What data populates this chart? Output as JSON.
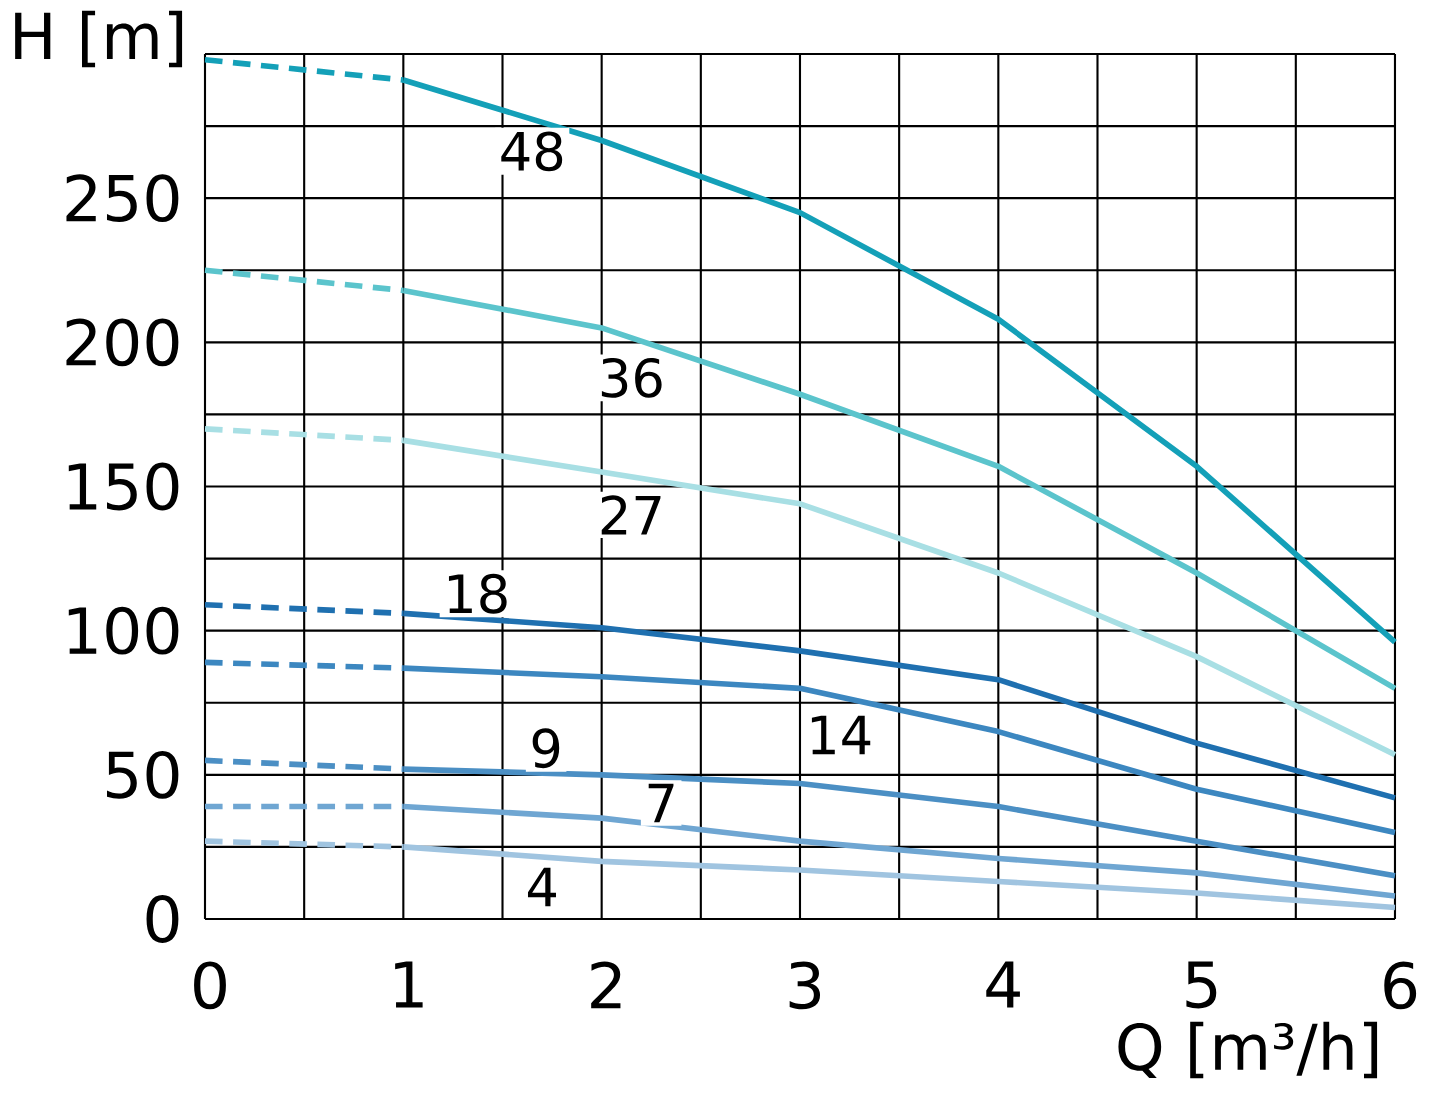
{
  "chart_data": {
    "type": "line",
    "xlabel": "Q [m³/h]",
    "ylabel": "H [m]",
    "xlim": [
      0,
      6
    ],
    "ylim": [
      0,
      300
    ],
    "xticks": [
      0,
      {
        "value": 0.5,
        "label": null
      },
      1,
      {
        "value": 1.5,
        "label": null
      },
      2,
      {
        "value": 2.5,
        "label": null
      },
      3,
      {
        "value": 3.5,
        "label": null
      },
      4,
      {
        "value": 4.5,
        "label": null
      },
      5,
      {
        "value": 5.5,
        "label": null
      },
      6
    ],
    "yticks": [
      0,
      {
        "value": 25,
        "label": null
      },
      50,
      {
        "value": 75,
        "label": null
      },
      100,
      {
        "value": 125,
        "label": null
      },
      150,
      {
        "value": 175,
        "label": null
      },
      200,
      {
        "value": 225,
        "label": null
      },
      250,
      {
        "value": 275,
        "label": null
      },
      {
        "value": 300,
        "label": null
      }
    ],
    "grid": true,
    "series": [
      {
        "color": "#14a0b8",
        "line_style": "dashed",
        "x": [
          0,
          1
        ],
        "values": [
          298,
          291
        ]
      },
      {
        "name": "48",
        "color": "#14a0b8",
        "line_style": "solid",
        "x": [
          1,
          2,
          3,
          4,
          5,
          6
        ],
        "values": [
          291,
          270,
          245,
          208,
          157,
          96
        ]
      },
      {
        "color": "#5bc4cc",
        "line_style": "dashed",
        "x": [
          0,
          1
        ],
        "values": [
          225,
          218
        ]
      },
      {
        "name": "36",
        "color": "#5bc4cc",
        "line_style": "solid",
        "x": [
          1,
          2,
          3,
          4,
          5,
          6
        ],
        "values": [
          218,
          205,
          182,
          157,
          120,
          80
        ]
      },
      {
        "color": "#a8dfe4",
        "line_style": "dashed",
        "x": [
          0,
          1
        ],
        "values": [
          170,
          166
        ]
      },
      {
        "name": "27",
        "color": "#a8dfe4",
        "line_style": "solid",
        "x": [
          1,
          2,
          3,
          4,
          5,
          6
        ],
        "values": [
          166,
          155,
          144,
          120,
          91,
          57
        ]
      },
      {
        "color": "#1f70b0",
        "line_style": "dashed",
        "x": [
          0,
          1
        ],
        "values": [
          109,
          106
        ]
      },
      {
        "name": "18",
        "color": "#1f70b0",
        "line_style": "solid",
        "x": [
          1,
          2,
          3,
          4,
          5,
          6
        ],
        "values": [
          106,
          101,
          93,
          83,
          61,
          42
        ]
      },
      {
        "color": "#3c87c0",
        "line_style": "dashed",
        "x": [
          0,
          1
        ],
        "values": [
          89,
          87
        ]
      },
      {
        "name": "14",
        "color": "#3c87c0",
        "line_style": "solid",
        "x": [
          1,
          2,
          3,
          4,
          5,
          6
        ],
        "values": [
          87,
          84,
          80,
          65,
          45,
          30
        ]
      },
      {
        "color": "#4b8fc4",
        "line_style": "dashed",
        "x": [
          0,
          1
        ],
        "values": [
          55,
          52
        ]
      },
      {
        "name": "9",
        "color": "#4b8fc4",
        "line_style": "solid",
        "x": [
          1,
          2,
          3,
          4,
          5,
          6
        ],
        "values": [
          52,
          50,
          47,
          39,
          27,
          15
        ]
      },
      {
        "color": "#6fa6d2",
        "line_style": "dashed",
        "x": [
          0,
          1
        ],
        "values": [
          39,
          39
        ]
      },
      {
        "name": "7",
        "color": "#6fa6d2",
        "line_style": "solid",
        "x": [
          1,
          2,
          3,
          4,
          5,
          6
        ],
        "values": [
          39,
          35,
          27,
          21,
          16,
          8
        ]
      },
      {
        "color": "#a0c4e0",
        "line_style": "dashed",
        "x": [
          0,
          1
        ],
        "values": [
          27,
          25
        ]
      },
      {
        "name": "4",
        "color": "#a0c4e0",
        "line_style": "solid",
        "x": [
          1,
          2,
          3,
          4,
          5,
          6
        ],
        "values": [
          25,
          20,
          17,
          13,
          9,
          4
        ]
      }
    ]
  }
}
